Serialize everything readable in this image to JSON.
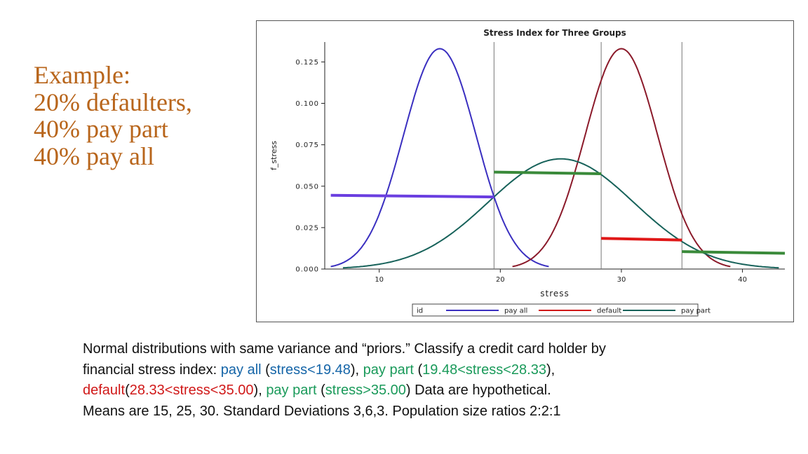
{
  "example": {
    "lines": [
      "Example:",
      "20% defaulters,",
      "40% pay part",
      "40% pay all"
    ],
    "color": "#b8651b"
  },
  "caption": {
    "line1": "Normal distributions with same variance and “priors.”  Classify a credit card holder by",
    "line2_a": "financial stress index: ",
    "line2_b": "pay all",
    "line2_c": " (",
    "line2_d": "stress<19.48",
    "line2_e": "), ",
    "line2_f": "pay part",
    "line2_g": " (",
    "line2_h": "19.48<stress<28.33",
    "line2_i": "),",
    "line3_a": "default",
    "line3_b": "(",
    "line3_c": "28.33<stress<35.00",
    "line3_d": "), ",
    "line3_e": "pay part",
    "line3_f": " (",
    "line3_g": "stress>35.00",
    "line3_h": ")   Data are hypothetical.",
    "line4": "Means are 15, 25, 30. Standard Deviations 3,6,3.      Population size ratios 2:2:1"
  },
  "chart_data": {
    "type": "line",
    "title": "Stress Index for Three Groups",
    "xlabel": "stress",
    "ylabel": "f_stress",
    "xlim": [
      5.5,
      43.5
    ],
    "ylim": [
      0,
      0.137
    ],
    "xticks": [
      10,
      20,
      30,
      40
    ],
    "yticks": [
      0.0,
      0.025,
      0.05,
      0.075,
      0.1,
      0.125
    ],
    "ytick_labels": [
      "0.000",
      "0.025",
      "0.050",
      "0.075",
      "0.100",
      "0.125"
    ],
    "legend_placement": "bottom",
    "legend_title": "id",
    "cutoffs": [
      19.48,
      28.33,
      35.0
    ],
    "series": [
      {
        "name": "pay all",
        "color": "#3a2fc0",
        "mean": 15,
        "sd": 3,
        "x_range": [
          6,
          24
        ]
      },
      {
        "name": "default",
        "color": "#8b1a2a",
        "mean": 30,
        "sd": 3,
        "x_range": [
          21,
          39
        ]
      },
      {
        "name": "pay part",
        "color": "#17625a",
        "mean": 25,
        "sd": 6,
        "x_range": [
          7,
          43
        ]
      }
    ],
    "weighted_segments": [
      {
        "group": "pay all",
        "color": "#6a3ee0",
        "x": [
          6,
          19.48
        ],
        "y": [
          0.0445,
          0.0435
        ]
      },
      {
        "group": "pay part",
        "color": "#3a8a3a",
        "x": [
          19.48,
          28.33
        ],
        "y": [
          0.0585,
          0.0575
        ]
      },
      {
        "group": "default",
        "color": "#e01818",
        "x": [
          28.33,
          35.0
        ],
        "y": [
          0.0185,
          0.0175
        ]
      },
      {
        "group": "pay part",
        "color": "#3a8a3a",
        "x": [
          35.0,
          43.5
        ],
        "y": [
          0.0105,
          0.0095
        ]
      }
    ]
  }
}
